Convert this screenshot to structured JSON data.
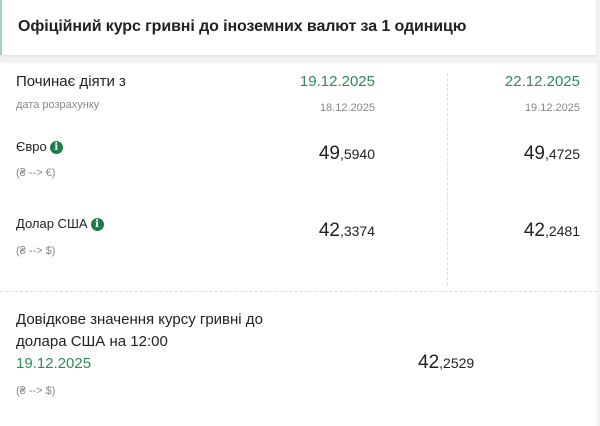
{
  "header": {
    "title": "Офіційний курс гривні до іноземних валют за 1 одиницю"
  },
  "table": {
    "effective_label": "Починає діяти з",
    "calc_label": "дата розрахунку",
    "columns": [
      {
        "effective_date": "19.12.2025",
        "calc_date": "18.12.2025"
      },
      {
        "effective_date": "22.12.2025",
        "calc_date": "19.12.2025"
      }
    ],
    "rows": [
      {
        "currency": "Євро",
        "direction": "(₴ --> €)",
        "info_icon": "info-icon",
        "values": [
          {
            "int": "49",
            "dec": ",5940"
          },
          {
            "int": "49",
            "dec": ",4725"
          }
        ]
      },
      {
        "currency": "Долар США",
        "direction": "(₴ --> $)",
        "info_icon": "info-icon",
        "values": [
          {
            "int": "42",
            "dec": ",3374"
          },
          {
            "int": "42",
            "dec": ",2481"
          }
        ]
      }
    ]
  },
  "reference": {
    "line1": "Довідкове значення курсу гривні до",
    "line2": "долара США на 12:00",
    "date": "19.12.2025",
    "direction": "(₴ --> $)",
    "value": {
      "int": "42",
      "dec": ",2529"
    }
  },
  "colors": {
    "accent": "#2e8b5a",
    "info": "#1e7e4a"
  }
}
